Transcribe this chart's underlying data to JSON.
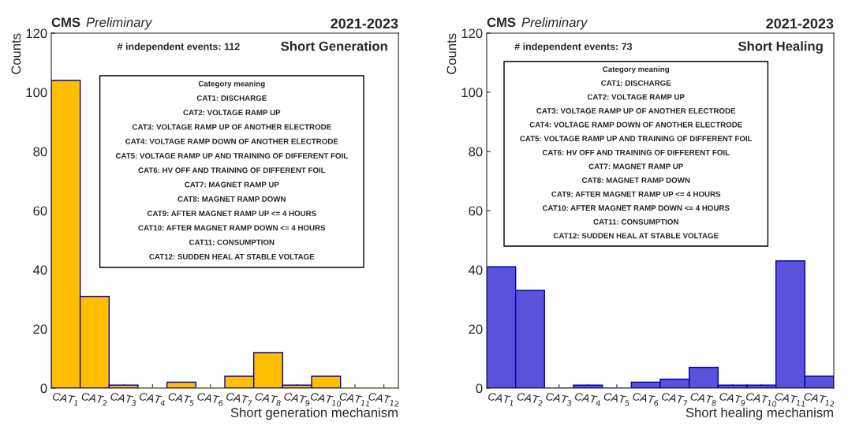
{
  "chart_data": [
    {
      "type": "bar",
      "title": "CMS",
      "subtitle": "Preliminary",
      "xlabel": "Short generation mechanism",
      "ylabel": "Counts",
      "categories": [
        "CAT$_{1}$",
        "CAT$_{2}$",
        "CAT$_{3}$",
        "CAT$_{4}$",
        "CAT$_{5}$",
        "CAT$_{6}$",
        "CAT$_{7}$",
        "CAT$_{8}$",
        "CAT$_{9}$",
        "CAT$_{10}$",
        "CAT$_{11}$",
        "CAT$_{12}$"
      ],
      "series": [
        {
          "color": "#ffbf00",
          "values": [
            104,
            31,
            1,
            0,
            2,
            0,
            4,
            12,
            1,
            4,
            0,
            0
          ]
        }
      ],
      "ylim": [
        0,
        120
      ],
      "yticks": [
        0,
        20,
        40,
        60,
        80,
        100,
        120
      ],
      "grid": false,
      "legend": false,
      "annotations": [
        "2021-2023",
        "# independent events: 112",
        "Short Generation",
        "Category meaning",
        "CAT1: DISCHARGE",
        "CAT2: VOLTAGE RAMP UP",
        "CAT3: VOLTAGE RAMP UP OF ANOTHER ELECTRODE",
        "CAT4: VOLTAGE RAMP DOWN OF ANOTHER ELECTRODE",
        "CAT5: VOLTAGE RAMP UP AND TRAINING OF DIFFERENT FOIL",
        "CAT6: HV OFF AND TRAINING OF DIFFERENT FOIL",
        "CAT7: MAGNET RAMP UP",
        "CAT8: MAGNET RAMP DOWN",
        "CAT9: AFTER MAGNET RAMP UP <= 4 HOURS",
        "CAT10: AFTER MAGNET RAMP DOWN <= 4 HOURS",
        "CAT11: CONSUMPTION",
        "CAT12: SUDDEN HEAL AT STABLE VOLTAGE"
      ]
    },
    {
      "type": "bar",
      "title": "CMS",
      "subtitle": "Preliminary",
      "xlabel": "Short healing mechanism",
      "ylabel": "Counts",
      "categories": [
        "CAT$_{1}$",
        "CAT$_{2}$",
        "CAT$_{3}$",
        "CAT$_{4}$",
        "CAT$_{5}$",
        "CAT$_{6}$",
        "CAT$_{7}$",
        "CAT$_{8}$",
        "CAT$_{9}$",
        "CAT$_{10}$",
        "CAT$_{11}$",
        "CAT$_{12}$"
      ],
      "series": [
        {
          "color": "#5b52dc",
          "values": [
            41,
            33,
            0,
            1,
            0,
            2,
            3,
            7,
            1,
            1,
            43,
            4
          ]
        }
      ],
      "ylim": [
        0,
        120
      ],
      "yticks": [
        0,
        20,
        40,
        60,
        80,
        100,
        120
      ],
      "grid": false,
      "legend": false,
      "annotations": [
        "2021-2023",
        "# independent events: 73",
        "Short Healing",
        "Category meaning",
        "CAT1: DISCHARGE",
        "CAT2: VOLTAGE RAMP UP",
        "CAT3: VOLTAGE RAMP UP OF ANOTHER ELECTRODE",
        "CAT4: VOLTAGE RAMP DOWN OF ANOTHER ELECTRODE",
        "CAT5: VOLTAGE RAMP UP AND TRAINING OF DIFFERENT FOIL",
        "CAT6: HV OFF AND TRAINING OF DIFFERENT FOIL",
        "CAT7: MAGNET RAMP UP",
        "CAT8: MAGNET RAMP DOWN",
        "CAT9: AFTER MAGNET RAMP UP <= 4 HOURS",
        "CAT10: AFTER MAGNET RAMP DOWN <= 4 HOURS",
        "CAT11: CONSUMPTION",
        "CAT12: SUDDEN HEAL AT STABLE VOLTAGE"
      ]
    }
  ]
}
